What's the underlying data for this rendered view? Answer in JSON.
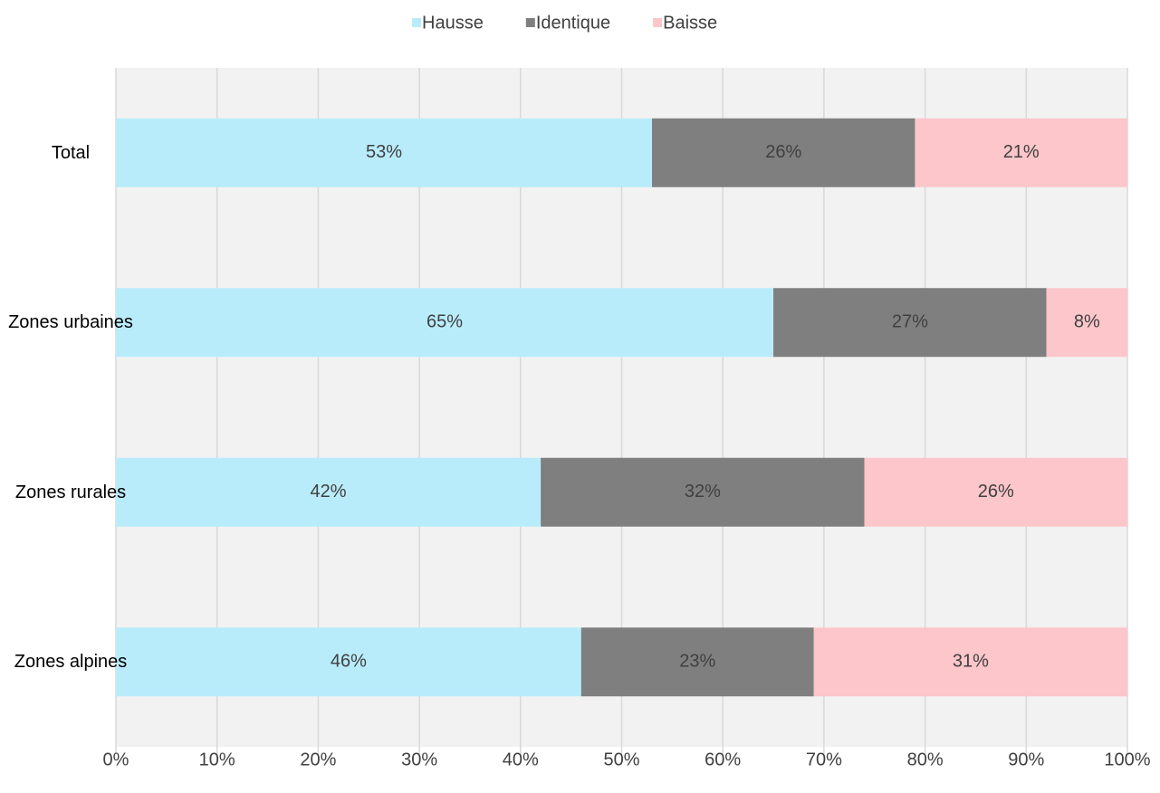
{
  "chart_data": {
    "type": "stacked-bar-horizontal",
    "categories": [
      "Total",
      "Zones urbaines",
      "Zones rurales",
      "Zones alpines"
    ],
    "series": [
      {
        "name": "Hausse",
        "color": "#b9ecfb",
        "values": [
          53,
          65,
          42,
          46
        ],
        "value_labels": [
          "53%",
          "65%",
          "42%",
          "46%"
        ]
      },
      {
        "name": "Identique",
        "color": "#7f7f7f",
        "values": [
          26,
          27,
          32,
          23
        ],
        "value_labels": [
          "26%",
          "27%",
          "32%",
          "23%"
        ]
      },
      {
        "name": "Baisse",
        "color": "#fcc6ca",
        "values": [
          21,
          8,
          26,
          31
        ],
        "value_labels": [
          "21%",
          "8%",
          "26%",
          "31%"
        ]
      }
    ],
    "xlim": [
      0,
      100
    ],
    "xticks": [
      {
        "value": 0,
        "label": "0%"
      },
      {
        "value": 10,
        "label": "10%"
      },
      {
        "value": 20,
        "label": "20%"
      },
      {
        "value": 30,
        "label": "30%"
      },
      {
        "value": 40,
        "label": "40%"
      },
      {
        "value": 50,
        "label": "50%"
      },
      {
        "value": 60,
        "label": "60%"
      },
      {
        "value": 70,
        "label": "70%"
      },
      {
        "value": 80,
        "label": "80%"
      },
      {
        "value": 90,
        "label": "90%"
      },
      {
        "value": 100,
        "label": "100%"
      }
    ],
    "grid": true,
    "legend": "top"
  }
}
